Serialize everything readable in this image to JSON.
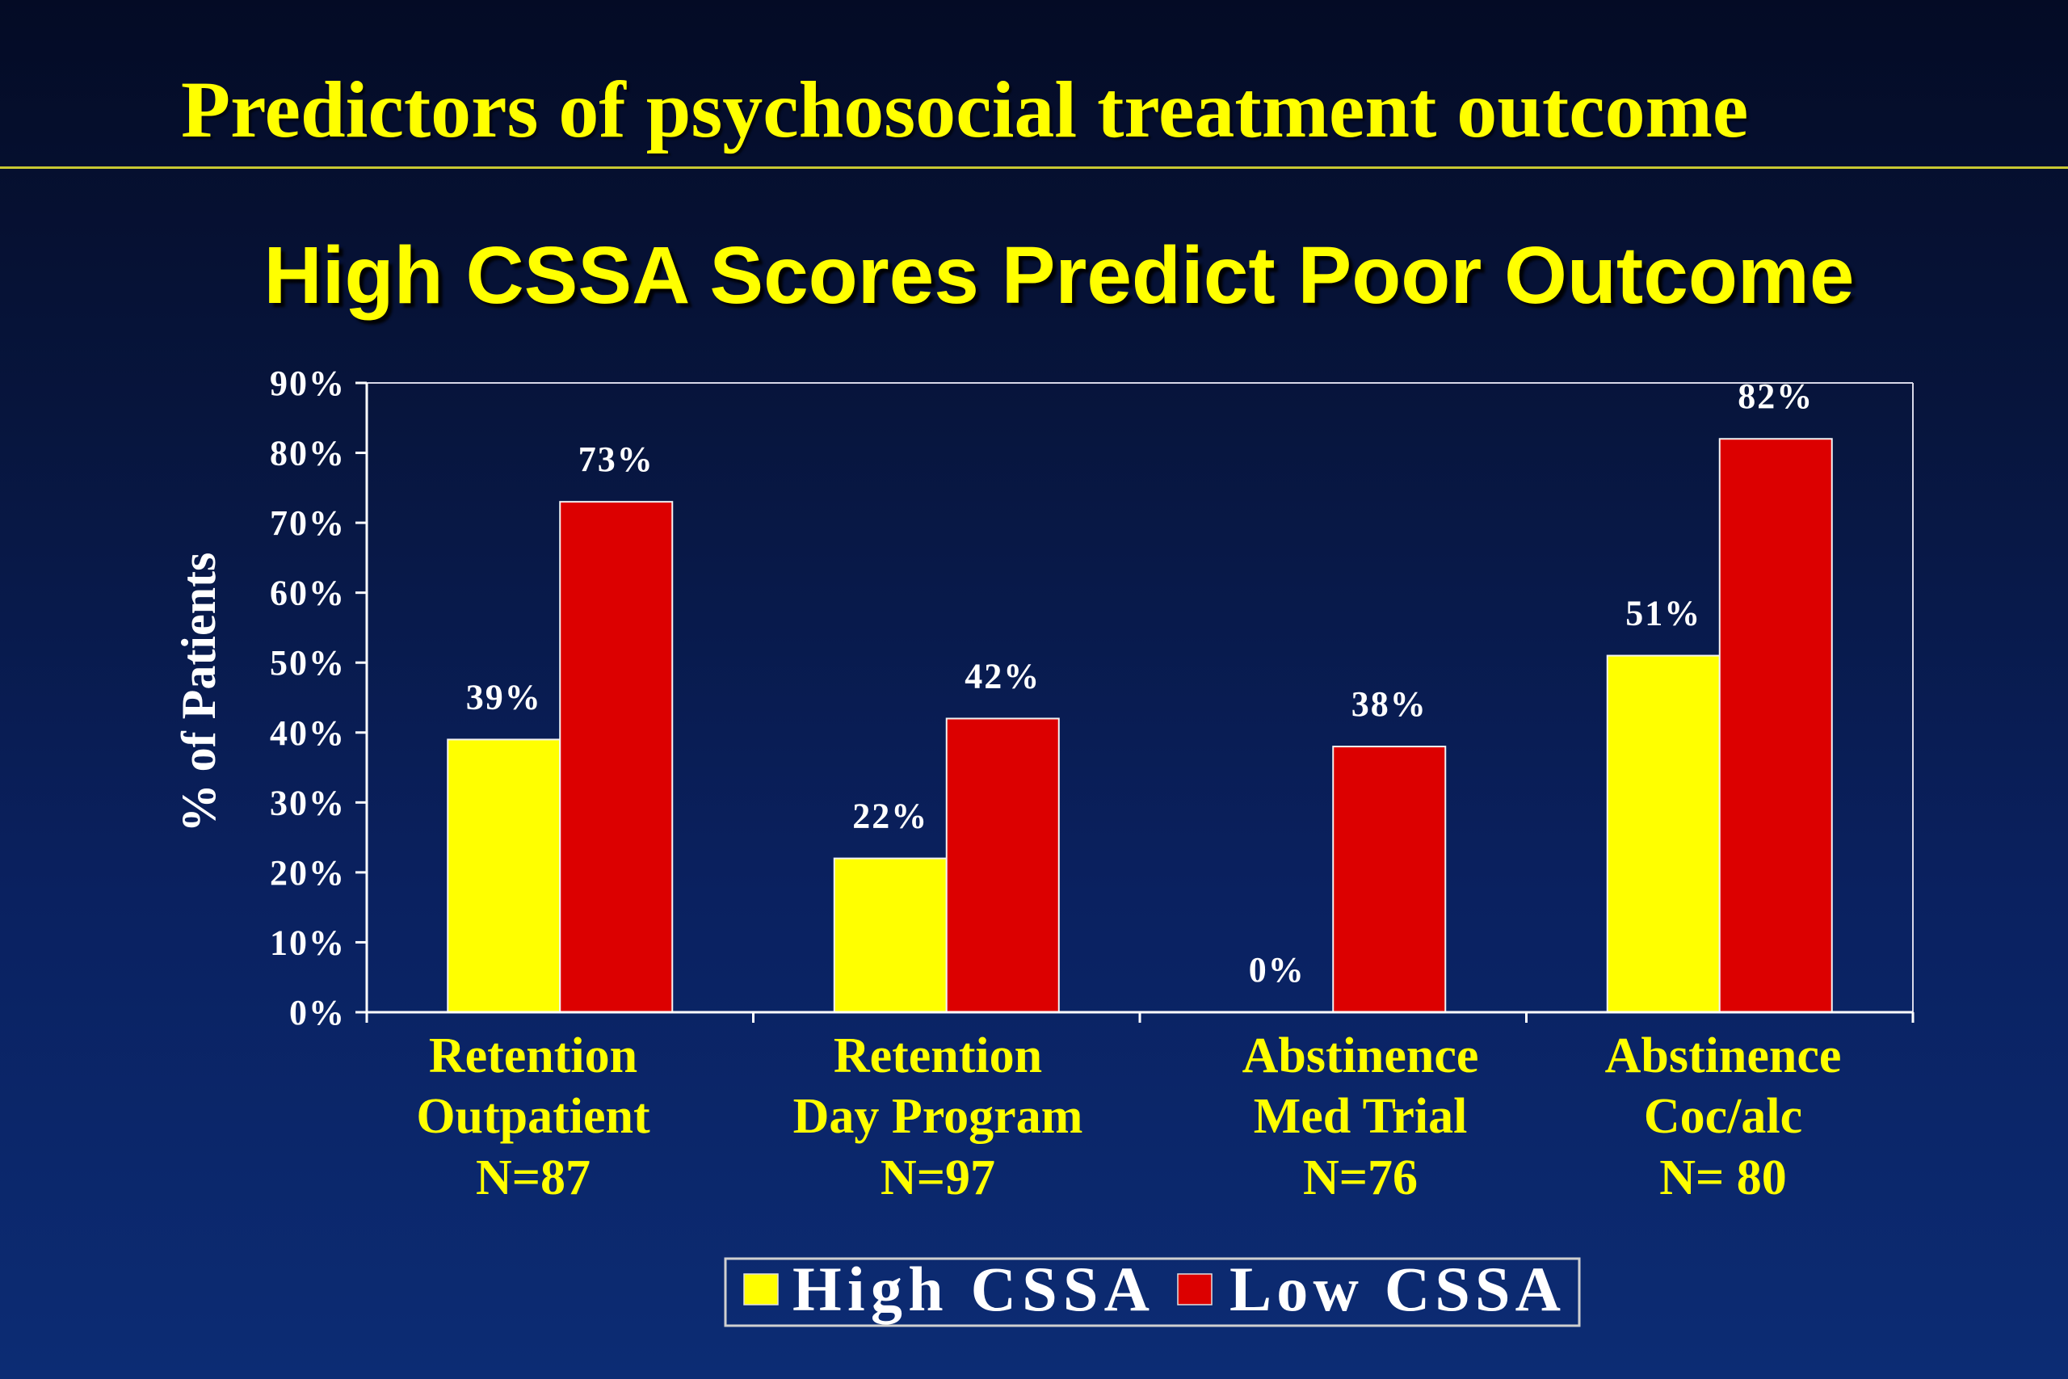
{
  "slide": {
    "title": "Predictors of psychosocial treatment outcome",
    "colors": {
      "background_top": "#040b25",
      "background_bottom": "#0c2c74",
      "title": "#ffff00",
      "rule": "#c8c832"
    }
  },
  "chart_data": {
    "type": "bar",
    "title": "High CSSA Scores Predict Poor Outcome",
    "ylabel": "% of Patients",
    "ylim": [
      0,
      90
    ],
    "yticks": [
      0,
      10,
      20,
      30,
      40,
      50,
      60,
      70,
      80,
      90
    ],
    "ytick_labels": [
      "0%",
      "10%",
      "20%",
      "30%",
      "40%",
      "50%",
      "60%",
      "70%",
      "80%",
      "90%"
    ],
    "categories": [
      [
        "Retention",
        "Outpatient",
        "N=87"
      ],
      [
        "Retention",
        "Day Program",
        "N=97"
      ],
      [
        "Abstinence",
        "Med Trial",
        "N=76"
      ],
      [
        "Abstinence",
        "Coc/alc",
        "N= 80"
      ]
    ],
    "series": [
      {
        "name": "High CSSA",
        "color": "#ffff00",
        "values": [
          39,
          22,
          0,
          51
        ],
        "labels": [
          "39%",
          "22%",
          "0%",
          "51%"
        ]
      },
      {
        "name": "Low CSSA",
        "color": "#dc0000",
        "values": [
          73,
          42,
          38,
          82
        ],
        "labels": [
          "73%",
          "42%",
          "38%",
          "82%"
        ]
      }
    ],
    "legend": "bottom-center",
    "grid": false,
    "colors": {
      "axis_text": "#ffffff",
      "category_text": "#ffff00",
      "axis_line": "#ffffff",
      "frame": "#d8d8e8"
    }
  }
}
